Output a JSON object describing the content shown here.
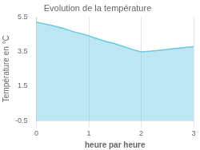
{
  "chart_data": {
    "type": "area",
    "title": "Evolution de la température",
    "xlabel": "heure par heure",
    "ylabel": "Température en °C",
    "x": [
      0,
      0.15,
      0.3,
      0.5,
      0.7,
      0.9,
      1.0,
      1.15,
      1.3,
      1.5,
      1.7,
      1.85,
      2.0,
      2.1,
      2.2,
      2.35,
      2.5,
      2.65,
      2.8,
      3.0
    ],
    "values": [
      5.2,
      5.1,
      5.0,
      4.85,
      4.65,
      4.5,
      4.4,
      4.25,
      4.1,
      3.95,
      3.75,
      3.6,
      3.48,
      3.5,
      3.52,
      3.57,
      3.62,
      3.68,
      3.72,
      3.78
    ],
    "color": "#6ac8e0",
    "xlim": [
      0,
      3
    ],
    "ylim": [
      -0.5,
      5.5
    ],
    "xticks": [
      0,
      1,
      2,
      3
    ],
    "yticks": [
      -0.5,
      1.5,
      3.5,
      5.5
    ],
    "grid": "x"
  }
}
